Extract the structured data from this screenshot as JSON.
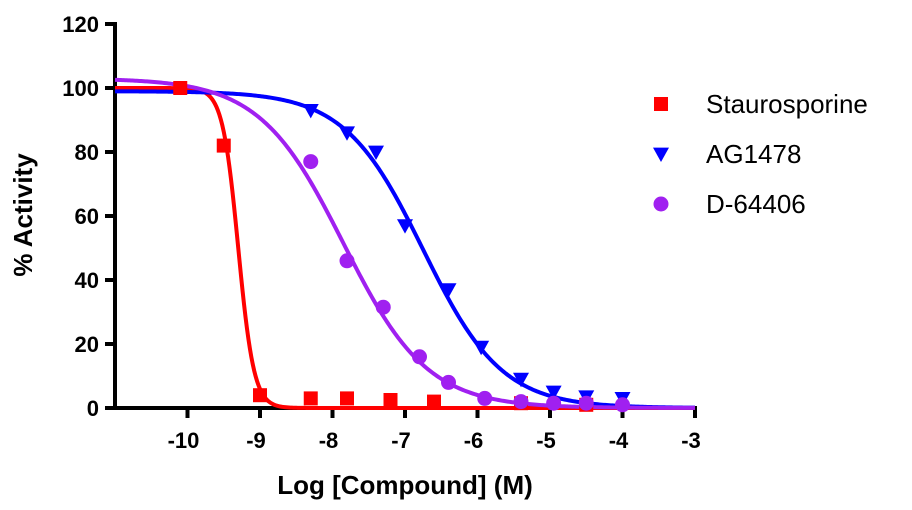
{
  "chart_data": {
    "type": "scatter",
    "title": "",
    "xlabel": "Log [Compound] (M)",
    "ylabel": "% Activity",
    "xlim": [
      -11,
      -3
    ],
    "ylim": [
      0,
      120
    ],
    "x_ticks": [
      -10,
      -9,
      -8,
      -7,
      -6,
      -5,
      -4,
      -3
    ],
    "y_ticks": [
      0,
      20,
      40,
      60,
      80,
      100,
      120
    ],
    "legend_position": "right",
    "series": [
      {
        "name": "Staurosporine",
        "color": "#ff0000",
        "marker": "square",
        "points": [
          {
            "x": -10.1,
            "y": 100
          },
          {
            "x": -9.5,
            "y": 82
          },
          {
            "x": -9.0,
            "y": 4
          },
          {
            "x": -8.3,
            "y": 3
          },
          {
            "x": -7.8,
            "y": 3
          },
          {
            "x": -7.2,
            "y": 2.5
          },
          {
            "x": -6.6,
            "y": 2
          },
          {
            "x": -5.4,
            "y": 1.5
          },
          {
            "x": -4.5,
            "y": 1
          }
        ],
        "fit": {
          "top": 100,
          "bottom": 0,
          "log_ic50": -9.3,
          "hill": 4.0
        }
      },
      {
        "name": "AG1478",
        "color": "#0000ff",
        "marker": "triangle-down",
        "points": [
          {
            "x": -8.3,
            "y": 93
          },
          {
            "x": -7.8,
            "y": 86
          },
          {
            "x": -7.4,
            "y": 80
          },
          {
            "x": -7.0,
            "y": 57
          },
          {
            "x": -6.4,
            "y": 37
          },
          {
            "x": -5.95,
            "y": 19
          },
          {
            "x": -5.4,
            "y": 9
          },
          {
            "x": -4.95,
            "y": 5
          },
          {
            "x": -4.5,
            "y": 3.5
          },
          {
            "x": -4.0,
            "y": 3
          }
        ],
        "fit": {
          "top": 99,
          "bottom": 0,
          "log_ic50": -6.75,
          "hill": 0.8
        }
      },
      {
        "name": "D-64406",
        "color": "#a020f0",
        "marker": "circle",
        "points": [
          {
            "x": -8.3,
            "y": 77
          },
          {
            "x": -7.8,
            "y": 46
          },
          {
            "x": -7.3,
            "y": 31.5
          },
          {
            "x": -6.8,
            "y": 16
          },
          {
            "x": -6.4,
            "y": 8
          },
          {
            "x": -5.9,
            "y": 3
          },
          {
            "x": -5.4,
            "y": 2
          },
          {
            "x": -4.95,
            "y": 1.5
          },
          {
            "x": -4.5,
            "y": 1.5
          },
          {
            "x": -4.0,
            "y": 1
          }
        ],
        "fit": {
          "top": 103,
          "bottom": 0,
          "log_ic50": -7.85,
          "hill": 0.75
        }
      }
    ]
  }
}
